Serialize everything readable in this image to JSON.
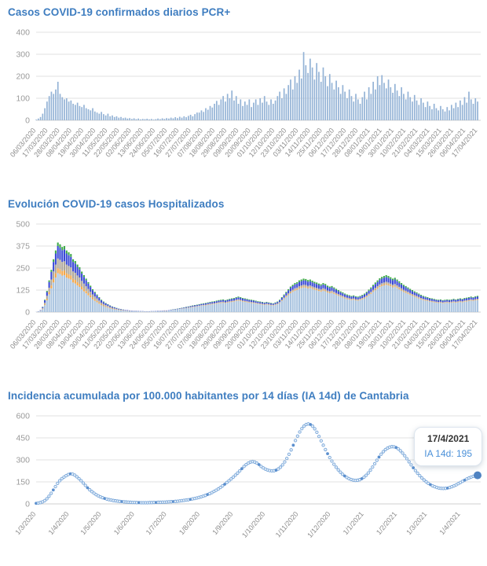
{
  "page": {
    "background": "#ffffff"
  },
  "colors": {
    "title_blue": "#3e7dc0",
    "grid": "#e2e2e2",
    "axis_label": "#9a9a9a",
    "x_label": "#8b8b8b",
    "bar_blue": "#94b3d6"
  },
  "charts": [
    {
      "id": "daily-cases",
      "title": "Casos COVID-19 confirmados diarios PCR+",
      "chart_data": {
        "type": "bar",
        "title": "Casos COVID-19 confirmados diarios PCR+",
        "xlabel": "",
        "ylabel": "",
        "ylim": [
          0,
          400
        ],
        "y_ticks": [
          0,
          100,
          200,
          300,
          400
        ],
        "x_tick_labels": [
          "06/03/2020",
          "17/03/2020",
          "28/03/2020",
          "08/04/2020",
          "19/04/2020",
          "30/04/2020",
          "11/05/2020",
          "22/05/2020",
          "02/06/2020",
          "13/06/2020",
          "24/06/2020",
          "05/07/2020",
          "16/07/2020",
          "27/07/2020",
          "07/08/2020",
          "18/08/2020",
          "29/08/2020",
          "09/09/2020",
          "20/09/2020",
          "01/10/2020",
          "12/10/2020",
          "23/10/2020",
          "03/11/2020",
          "14/11/2020",
          "25/11/2020",
          "06/12/2020",
          "17/12/2020",
          "28/12/2020",
          "08/01/2021",
          "19/01/2021",
          "30/01/2021",
          "10/02/2021",
          "21/02/2021",
          "04/03/2021",
          "15/03/2021",
          "26/03/2021",
          "06/04/2021",
          "17/04/2021"
        ],
        "sample_interval_days": 2,
        "values": [
          3,
          8,
          15,
          30,
          55,
          85,
          110,
          130,
          120,
          140,
          175,
          120,
          105,
          95,
          100,
          85,
          90,
          75,
          70,
          80,
          65,
          60,
          70,
          55,
          50,
          45,
          55,
          40,
          35,
          30,
          38,
          28,
          22,
          30,
          18,
          22,
          15,
          18,
          12,
          15,
          10,
          12,
          8,
          10,
          6,
          9,
          5,
          8,
          4,
          6,
          5,
          7,
          4,
          6,
          3,
          5,
          8,
          5,
          9,
          6,
          10,
          8,
          12,
          9,
          14,
          10,
          16,
          12,
          18,
          14,
          20,
          25,
          18,
          28,
          35,
          35,
          45,
          38,
          55,
          48,
          65,
          58,
          75,
          88,
          70,
          95,
          110,
          85,
          120,
          100,
          135,
          90,
          110,
          75,
          95,
          65,
          85,
          70,
          95,
          60,
          80,
          95,
          70,
          100,
          80,
          110,
          85,
          70,
          95,
          75,
          90,
          110,
          130,
          100,
          145,
          120,
          160,
          185,
          140,
          200,
          170,
          230,
          190,
          310,
          250,
          215,
          280,
          240,
          185,
          260,
          220,
          175,
          240,
          200,
          155,
          210,
          170,
          140,
          180,
          150,
          120,
          160,
          130,
          100,
          140,
          110,
          85,
          120,
          95,
          75,
          105,
          130,
          95,
          150,
          120,
          175,
          140,
          200,
          160,
          205,
          170,
          145,
          185,
          150,
          125,
          165,
          135,
          110,
          150,
          120,
          95,
          130,
          105,
          85,
          115,
          90,
          70,
          100,
          80,
          60,
          85,
          65,
          50,
          75,
          55,
          45,
          65,
          50,
          40,
          60,
          45,
          70,
          55,
          80,
          60,
          90,
          70,
          105,
          80,
          130,
          95,
          75,
          100,
          85
        ],
        "bar_color": "#94b3d6"
      }
    },
    {
      "id": "hospitalized",
      "title": "Evolución COVID-19 casos  Hospitalizados",
      "chart_data": {
        "type": "stacked-bar",
        "title": "Evolución COVID-19 casos  Hospitalizados",
        "xlabel": "",
        "ylabel": "",
        "ylim": [
          0,
          500
        ],
        "y_ticks": [
          0,
          125,
          250,
          375,
          500
        ],
        "x_tick_labels": [
          "06/03/2020",
          "17/03/2020",
          "28/03/2020",
          "08/04/2020",
          "19/04/2020",
          "30/04/2020",
          "11/05/2020",
          "22/05/2020",
          "02/06/2020",
          "13/06/2020",
          "24/06/2020",
          "05/07/2020",
          "16/07/2020",
          "27/07/2020",
          "07/08/2020",
          "18/08/2020",
          "29/08/2020",
          "09/09/2020",
          "20/09/2020",
          "01/10/2020",
          "12/10/2020",
          "23/10/2020",
          "03/11/2020",
          "14/11/2020",
          "25/11/2020",
          "06/12/2020",
          "17/12/2020",
          "28/12/2020",
          "08/01/2021",
          "19/01/2021",
          "30/01/2021",
          "10/02/2021",
          "21/02/2021",
          "04/03/2021",
          "15/03/2021",
          "26/03/2021",
          "06/04/2021",
          "17/04/2021"
        ],
        "sample_interval_days": 2,
        "totals": [
          2,
          5,
          12,
          30,
          70,
          120,
          180,
          240,
          300,
          350,
          395,
          385,
          370,
          375,
          350,
          340,
          330,
          300,
          290,
          270,
          255,
          230,
          210,
          190,
          170,
          150,
          130,
          115,
          100,
          85,
          70,
          60,
          52,
          45,
          38,
          32,
          28,
          24,
          20,
          17,
          15,
          13,
          12,
          10,
          9,
          8,
          8,
          7,
          6,
          6,
          5,
          5,
          5,
          6,
          6,
          7,
          8,
          8,
          9,
          10,
          10,
          12,
          14,
          16,
          18,
          20,
          22,
          25,
          27,
          30,
          32,
          35,
          38,
          40,
          42,
          45,
          48,
          50,
          52,
          55,
          58,
          60,
          62,
          65,
          68,
          70,
          72,
          68,
          72,
          75,
          78,
          80,
          85,
          88,
          85,
          80,
          78,
          75,
          72,
          70,
          68,
          65,
          62,
          60,
          58,
          55,
          58,
          55,
          52,
          50,
          55,
          60,
          70,
          85,
          100,
          115,
          130,
          145,
          155,
          165,
          170,
          180,
          185,
          190,
          188,
          182,
          185,
          178,
          172,
          168,
          162,
          158,
          165,
          160,
          150,
          145,
          148,
          140,
          132,
          125,
          118,
          112,
          105,
          100,
          96,
          92,
          95,
          90,
          88,
          92,
          98,
          105,
          115,
          128,
          140,
          155,
          168,
          180,
          192,
          200,
          205,
          210,
          205,
          198,
          190,
          195,
          185,
          175,
          165,
          155,
          148,
          140,
          132,
          125,
          118,
          112,
          105,
          98,
          92,
          88,
          85,
          80,
          78,
          75,
          72,
          70,
          72,
          68,
          70,
          72,
          70,
          72,
          75,
          72,
          75,
          78,
          75,
          80,
          82,
          85,
          88,
          85,
          90,
          92
        ],
        "layers": [
          {
            "name": "series-lightblue",
            "color": "#aac4e0"
          },
          {
            "name": "series-orange",
            "color": "#f2a74b"
          },
          {
            "name": "series-gray",
            "color": "#aea699"
          },
          {
            "name": "series-blue",
            "color": "#3a49d6"
          },
          {
            "name": "series-green",
            "color": "#3faa49"
          }
        ],
        "eras": [
          {
            "until_index": 60,
            "fractions": [
              0.56,
              0.07,
              0.14,
              0.18,
              0.05
            ]
          },
          {
            "until_index": 204,
            "fractions": [
              0.74,
              0.03,
              0.05,
              0.13,
              0.05
            ]
          }
        ]
      }
    },
    {
      "id": "ia14d",
      "title": "Incidencia acumulada por 100.000 habitantes por 14 días (IA 14d) de Cantabria",
      "chart_data": {
        "type": "scatter",
        "title": "Incidencia acumulada por 100.000 habitantes por 14 días (IA 14d) de Cantabria",
        "xlabel": "",
        "ylabel": "",
        "ylim": [
          0,
          600
        ],
        "y_ticks": [
          0,
          150,
          300,
          450,
          600
        ],
        "x_tick_labels": [
          "1/3/2020",
          "1/4/2020",
          "1/5/2020",
          "1/6/2020",
          "1/7/2020",
          "1/8/2020",
          "1/9/2020",
          "1/10/2020",
          "1/11/2020",
          "1/12/2020",
          "1/1/2021",
          "1/2/2021",
          "1/3/2021",
          "1/4/2021"
        ],
        "end_date": "17/4/2021",
        "sample_interval_days": 2,
        "values": [
          4,
          6,
          9,
          14,
          22,
          35,
          52,
          72,
          95,
          118,
          140,
          158,
          172,
          183,
          192,
          200,
          205,
          203,
          196,
          185,
          172,
          158,
          142,
          126,
          110,
          96,
          84,
          73,
          63,
          55,
          48,
          42,
          37,
          33,
          29,
          26,
          23,
          21,
          19,
          17,
          16,
          14,
          13,
          12,
          11,
          10,
          10,
          9,
          9,
          8,
          8,
          8,
          8,
          9,
          9,
          10,
          10,
          11,
          11,
          12,
          12,
          13,
          14,
          15,
          16,
          17,
          18,
          20,
          22,
          24,
          26,
          28,
          31,
          34,
          37,
          40,
          44,
          48,
          53,
          58,
          64,
          70,
          77,
          85,
          93,
          102,
          112,
          123,
          134,
          146,
          158,
          170,
          183,
          196,
          210,
          225,
          240,
          255,
          268,
          278,
          285,
          288,
          285,
          278,
          268,
          255,
          245,
          237,
          231,
          227,
          225,
          226,
          230,
          238,
          250,
          266,
          286,
          310,
          338,
          368,
          400,
          432,
          462,
          490,
          513,
          530,
          541,
          545,
          541,
          530,
          512,
          488,
          460,
          430,
          400,
          370,
          342,
          316,
          292,
          270,
          250,
          232,
          216,
          202,
          190,
          180,
          172,
          166,
          162,
          160,
          161,
          165,
          172,
          182,
          195,
          211,
          230,
          251,
          274,
          297,
          319,
          339,
          356,
          370,
          380,
          387,
          390,
          389,
          384,
          375,
          362,
          346,
          328,
          308,
          287,
          266,
          246,
          227,
          209,
          192,
          177,
          163,
          151,
          140,
          131,
          123,
          117,
          112,
          108,
          106,
          105,
          106,
          108,
          112,
          117,
          123,
          130,
          138,
          146,
          154,
          162,
          170,
          177,
          183,
          188,
          192,
          195
        ],
        "dot_stroke": "#7aa7d9",
        "dot_fill": "#e8f1fa",
        "dot_filled": "#5b8fce",
        "last_dot_color": "#4f83c2",
        "tooltip": {
          "date": "17/4/2021",
          "label": "IA 14d: 195"
        }
      }
    }
  ]
}
